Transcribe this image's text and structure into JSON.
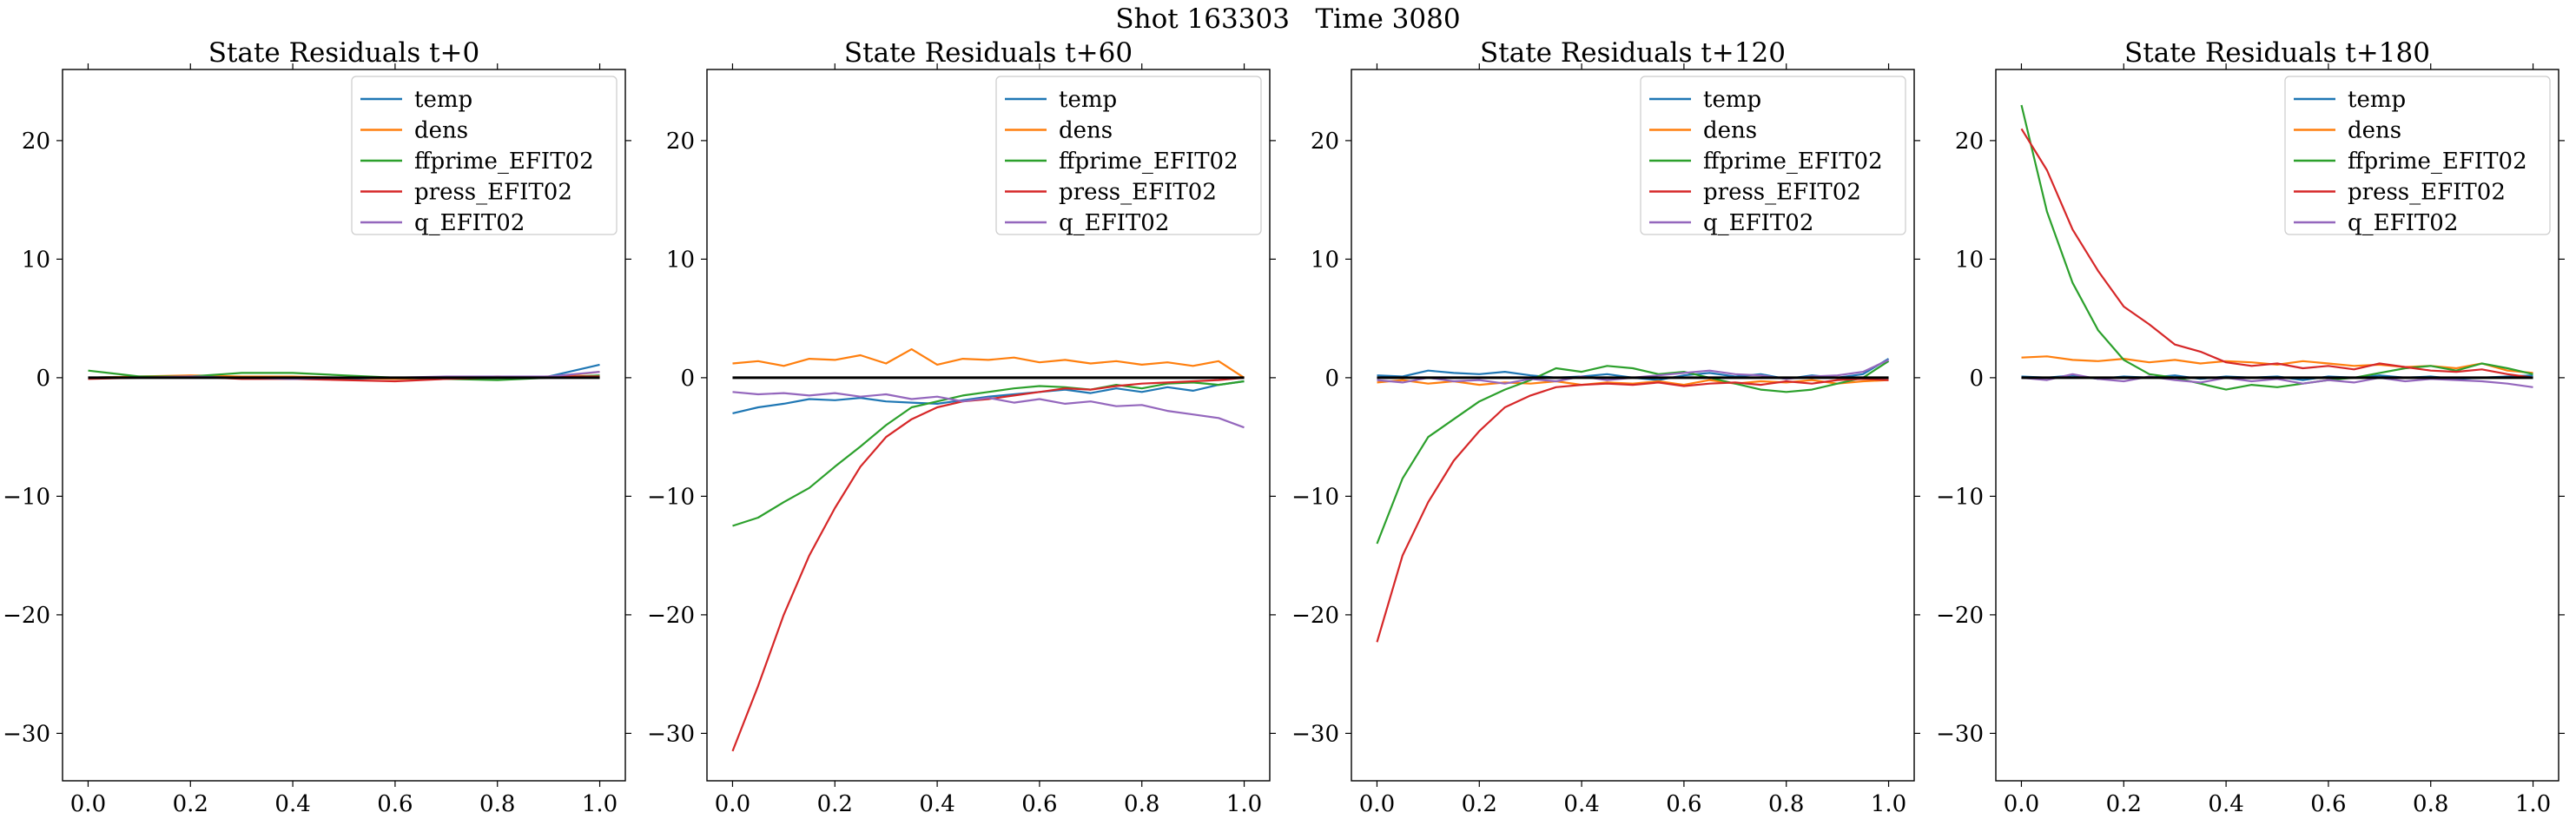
{
  "figure": {
    "suptitle": "Shot 163303   Time 3080"
  },
  "colors": {
    "temp": "#1f77b4",
    "dens": "#ff7f0e",
    "ffprime_EFIT02": "#2ca02c",
    "press_EFIT02": "#d62728",
    "q_EFIT02": "#9467bd",
    "zero_line": "#000000"
  },
  "chart_data": [
    {
      "type": "line",
      "title": "State Residuals t+0",
      "xlabel": "",
      "ylabel": "",
      "xlim": [
        -0.05,
        1.05
      ],
      "ylim": [
        -34,
        26
      ],
      "xticks": [
        "0.0",
        "0.2",
        "0.4",
        "0.6",
        "0.8",
        "1.0"
      ],
      "yticks": [
        "−30",
        "−20",
        "−10",
        "0",
        "10",
        "20"
      ],
      "legend_position": "top-right",
      "x": [
        0.0,
        0.1,
        0.2,
        0.3,
        0.4,
        0.5,
        0.6,
        0.7,
        0.8,
        0.9,
        1.0
      ],
      "reference_line": 0,
      "series": [
        {
          "name": "temp",
          "values": [
            0.0,
            0.1,
            0.1,
            0.0,
            -0.1,
            -0.1,
            0.0,
            0.0,
            0.0,
            0.1,
            1.1
          ]
        },
        {
          "name": "dens",
          "values": [
            0.0,
            0.1,
            0.2,
            0.1,
            0.1,
            0.0,
            -0.1,
            0.0,
            0.1,
            0.0,
            0.5
          ]
        },
        {
          "name": "ffprime_EFIT02",
          "values": [
            0.6,
            0.1,
            0.1,
            0.4,
            0.4,
            0.2,
            0.0,
            -0.1,
            -0.2,
            0.0,
            0.2
          ]
        },
        {
          "name": "press_EFIT02",
          "values": [
            -0.1,
            0.0,
            0.1,
            -0.1,
            -0.1,
            -0.2,
            -0.3,
            -0.1,
            0.0,
            0.1,
            0.1
          ]
        },
        {
          "name": "q_EFIT02",
          "values": [
            0.0,
            0.0,
            0.1,
            0.0,
            -0.1,
            0.0,
            0.0,
            0.1,
            0.1,
            0.1,
            0.5
          ]
        }
      ]
    },
    {
      "type": "line",
      "title": "State Residuals t+60",
      "xlabel": "",
      "ylabel": "",
      "xlim": [
        -0.05,
        1.05
      ],
      "ylim": [
        -34,
        26
      ],
      "xticks": [
        "0.0",
        "0.2",
        "0.4",
        "0.6",
        "0.8",
        "1.0"
      ],
      "yticks": [
        "−30",
        "−20",
        "−10",
        "0",
        "10",
        "20"
      ],
      "legend_position": "top-right",
      "x": [
        0.0,
        0.05,
        0.1,
        0.15,
        0.2,
        0.25,
        0.3,
        0.35,
        0.4,
        0.45,
        0.5,
        0.55,
        0.6,
        0.65,
        0.7,
        0.75,
        0.8,
        0.85,
        0.9,
        0.95,
        1.0
      ],
      "reference_line": 0,
      "series": [
        {
          "name": "temp",
          "values": [
            -3.0,
            -2.5,
            -2.2,
            -1.8,
            -1.9,
            -1.7,
            -2.0,
            -2.1,
            -2.2,
            -1.9,
            -1.6,
            -1.4,
            -1.2,
            -1.0,
            -1.3,
            -0.9,
            -1.2,
            -0.8,
            -1.1,
            -0.6,
            -0.3
          ]
        },
        {
          "name": "dens",
          "values": [
            1.2,
            1.4,
            1.0,
            1.6,
            1.5,
            1.9,
            1.2,
            2.4,
            1.1,
            1.6,
            1.5,
            1.7,
            1.3,
            1.5,
            1.2,
            1.4,
            1.1,
            1.3,
            1.0,
            1.4,
            0.0
          ]
        },
        {
          "name": "ffprime_EFIT02",
          "values": [
            -12.5,
            -11.8,
            -10.5,
            -9.3,
            -7.5,
            -5.8,
            -4.0,
            -2.5,
            -2.0,
            -1.5,
            -1.2,
            -0.9,
            -0.7,
            -0.8,
            -1.0,
            -0.6,
            -0.9,
            -0.5,
            -0.4,
            -0.6,
            -0.3
          ]
        },
        {
          "name": "press_EFIT02",
          "values": [
            -31.5,
            -26.0,
            -20.0,
            -15.0,
            -11.0,
            -7.5,
            -5.0,
            -3.5,
            -2.5,
            -2.0,
            -1.8,
            -1.5,
            -1.2,
            -0.9,
            -1.0,
            -0.7,
            -0.5,
            -0.4,
            -0.3,
            -0.2,
            0.0
          ]
        },
        {
          "name": "q_EFIT02",
          "values": [
            -1.2,
            -1.4,
            -1.3,
            -1.5,
            -1.3,
            -1.6,
            -1.4,
            -1.8,
            -1.6,
            -2.0,
            -1.7,
            -2.1,
            -1.8,
            -2.2,
            -2.0,
            -2.4,
            -2.3,
            -2.8,
            -3.1,
            -3.4,
            -4.2
          ]
        }
      ]
    },
    {
      "type": "line",
      "title": "State Residuals t+120",
      "xlabel": "",
      "ylabel": "",
      "xlim": [
        -0.05,
        1.05
      ],
      "ylim": [
        -34,
        26
      ],
      "xticks": [
        "0.0",
        "0.2",
        "0.4",
        "0.6",
        "0.8",
        "1.0"
      ],
      "yticks": [
        "−30",
        "−20",
        "−10",
        "0",
        "10",
        "20"
      ],
      "legend_position": "top-right",
      "x": [
        0.0,
        0.05,
        0.1,
        0.15,
        0.2,
        0.25,
        0.3,
        0.35,
        0.4,
        0.45,
        0.5,
        0.55,
        0.6,
        0.65,
        0.7,
        0.75,
        0.8,
        0.85,
        0.9,
        0.95,
        1.0
      ],
      "reference_line": 0,
      "series": [
        {
          "name": "temp",
          "values": [
            0.2,
            0.1,
            0.6,
            0.4,
            0.3,
            0.5,
            0.2,
            0.0,
            0.1,
            0.3,
            0.0,
            -0.2,
            0.2,
            0.4,
            0.1,
            0.3,
            -0.1,
            0.2,
            0.0,
            0.3,
            1.6
          ]
        },
        {
          "name": "dens",
          "values": [
            -0.4,
            -0.2,
            -0.5,
            -0.3,
            -0.6,
            -0.4,
            -0.5,
            -0.3,
            -0.6,
            -0.4,
            -0.5,
            -0.3,
            -0.6,
            -0.2,
            -0.5,
            -0.3,
            -0.4,
            -0.2,
            -0.5,
            -0.3,
            -0.2
          ]
        },
        {
          "name": "ffprime_EFIT02",
          "values": [
            -14.0,
            -8.5,
            -5.0,
            -3.5,
            -2.0,
            -1.0,
            -0.2,
            0.8,
            0.5,
            1.0,
            0.8,
            0.3,
            0.5,
            0.0,
            -0.5,
            -1.0,
            -1.2,
            -1.0,
            -0.5,
            0.0,
            1.4
          ]
        },
        {
          "name": "press_EFIT02",
          "values": [
            -22.3,
            -15.0,
            -10.5,
            -7.0,
            -4.5,
            -2.5,
            -1.5,
            -0.8,
            -0.6,
            -0.5,
            -0.6,
            -0.4,
            -0.7,
            -0.5,
            -0.4,
            -0.6,
            -0.3,
            -0.5,
            -0.2,
            -0.1,
            -0.2
          ]
        },
        {
          "name": "q_EFIT02",
          "values": [
            -0.2,
            -0.4,
            0.0,
            -0.3,
            -0.2,
            -0.5,
            -0.1,
            -0.3,
            0.1,
            -0.2,
            0.0,
            0.2,
            0.4,
            0.6,
            0.3,
            0.2,
            -0.1,
            0.1,
            0.2,
            0.5,
            1.5
          ]
        }
      ]
    },
    {
      "type": "line",
      "title": "State Residuals t+180",
      "xlabel": "",
      "ylabel": "",
      "xlim": [
        -0.05,
        1.05
      ],
      "ylim": [
        -34,
        26
      ],
      "xticks": [
        "0.0",
        "0.2",
        "0.4",
        "0.6",
        "0.8",
        "1.0"
      ],
      "yticks": [
        "−30",
        "−20",
        "−10",
        "0",
        "10",
        "20"
      ],
      "legend_position": "top-right",
      "x": [
        0.0,
        0.05,
        0.1,
        0.15,
        0.2,
        0.25,
        0.3,
        0.35,
        0.4,
        0.45,
        0.5,
        0.55,
        0.6,
        0.65,
        0.7,
        0.75,
        0.8,
        0.85,
        0.9,
        0.95,
        1.0
      ],
      "reference_line": 0,
      "series": [
        {
          "name": "temp",
          "values": [
            0.1,
            0.0,
            0.2,
            -0.1,
            0.1,
            0.0,
            0.2,
            -0.1,
            0.1,
            0.0,
            0.1,
            -0.2,
            0.1,
            0.0,
            0.2,
            0.0,
            0.1,
            -0.1,
            0.0,
            0.1,
            0.2
          ]
        },
        {
          "name": "dens",
          "values": [
            1.7,
            1.8,
            1.5,
            1.4,
            1.6,
            1.3,
            1.5,
            1.2,
            1.4,
            1.3,
            1.1,
            1.4,
            1.2,
            1.0,
            1.1,
            0.9,
            1.0,
            0.8,
            1.2,
            0.6,
            0.4
          ]
        },
        {
          "name": "ffprime_EFIT02",
          "values": [
            23.0,
            14.0,
            8.0,
            4.0,
            1.5,
            0.3,
            0.0,
            -0.5,
            -1.0,
            -0.6,
            -0.8,
            -0.5,
            -0.2,
            0.0,
            0.4,
            0.8,
            1.0,
            0.6,
            1.2,
            0.8,
            0.3
          ]
        },
        {
          "name": "press_EFIT02",
          "values": [
            21.0,
            17.5,
            12.5,
            9.0,
            6.0,
            4.5,
            2.8,
            2.2,
            1.3,
            1.0,
            1.2,
            0.8,
            1.0,
            0.7,
            1.2,
            0.9,
            0.6,
            0.5,
            0.7,
            0.3,
            0.0
          ]
        },
        {
          "name": "q_EFIT02",
          "values": [
            0.0,
            -0.2,
            0.3,
            -0.1,
            -0.3,
            0.1,
            -0.2,
            -0.4,
            0.0,
            -0.3,
            -0.1,
            -0.5,
            -0.2,
            -0.4,
            0.0,
            -0.3,
            -0.1,
            -0.2,
            -0.3,
            -0.5,
            -0.8
          ]
        }
      ]
    }
  ]
}
